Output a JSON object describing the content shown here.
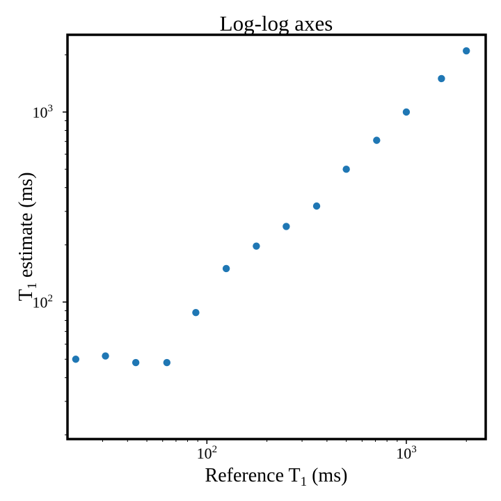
{
  "chart_data": {
    "type": "scatter",
    "title": "Log-log axes",
    "xlabel": {
      "main": "Reference T",
      "sub": "1",
      "unit": " (ms)"
    },
    "ylabel": {
      "main": "T",
      "sub": "1",
      "unit": " estimate (ms)"
    },
    "xscale": "log",
    "yscale": "log",
    "xlim": [
      20,
      2500
    ],
    "ylim": [
      19,
      2550
    ],
    "x_ticks": [
      {
        "value": 100,
        "base": "10",
        "exp": "2"
      },
      {
        "value": 1000,
        "base": "10",
        "exp": "3"
      }
    ],
    "y_ticks": [
      {
        "value": 100,
        "base": "10",
        "exp": "2"
      },
      {
        "value": 1000,
        "base": "10",
        "exp": "3"
      }
    ],
    "grid": false,
    "legend": "none",
    "marker_color": "#1f77b4",
    "points": [
      {
        "x": 22,
        "y": 50
      },
      {
        "x": 31,
        "y": 52
      },
      {
        "x": 44,
        "y": 48
      },
      {
        "x": 63,
        "y": 48
      },
      {
        "x": 88,
        "y": 88
      },
      {
        "x": 125,
        "y": 150
      },
      {
        "x": 177,
        "y": 197
      },
      {
        "x": 250,
        "y": 250
      },
      {
        "x": 355,
        "y": 320
      },
      {
        "x": 500,
        "y": 500
      },
      {
        "x": 710,
        "y": 710
      },
      {
        "x": 1000,
        "y": 1000
      },
      {
        "x": 1500,
        "y": 1500
      },
      {
        "x": 2000,
        "y": 2100
      }
    ]
  }
}
